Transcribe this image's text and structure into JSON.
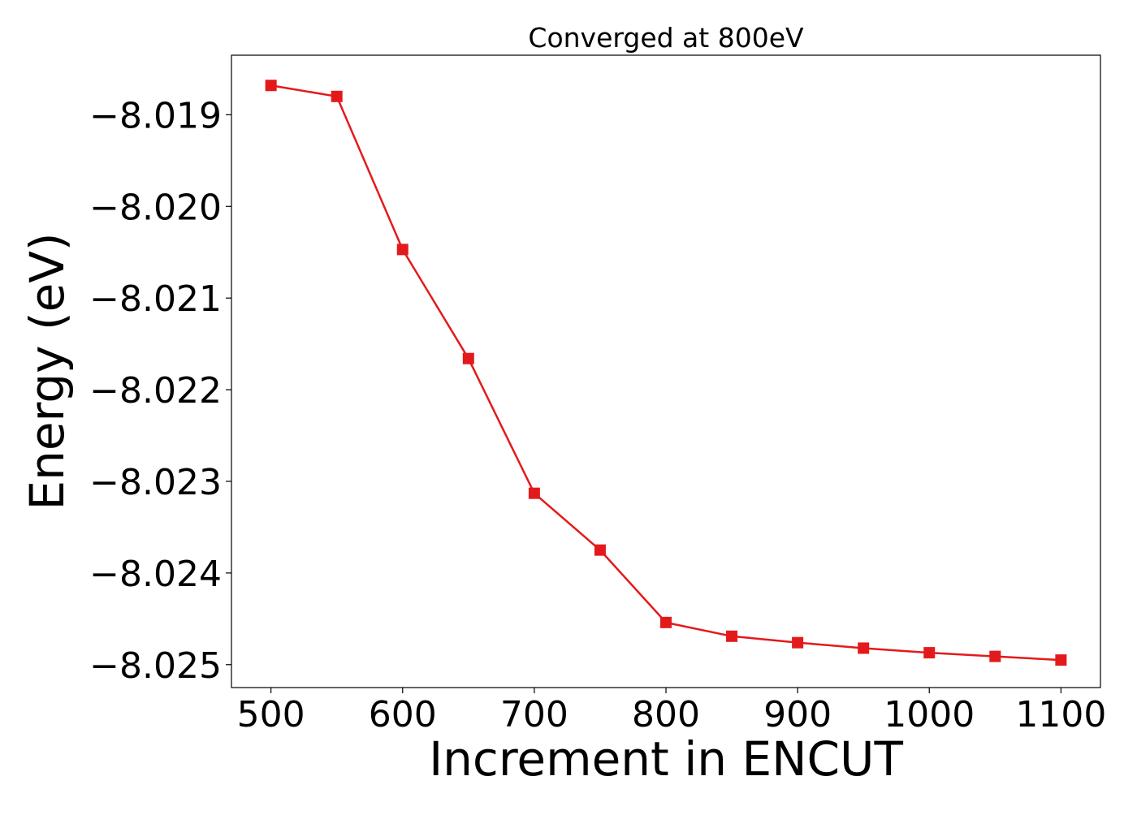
{
  "chart_data": {
    "type": "line",
    "title": "Converged at 800eV",
    "xlabel": "Increment in ENCUT",
    "ylabel": "Energy (eV)",
    "xlim": [
      470,
      1130
    ],
    "ylim": [
      -8.02525,
      -8.01835
    ],
    "xticks": [
      500,
      600,
      700,
      800,
      900,
      1000,
      1100
    ],
    "xtick_labels": [
      "500",
      "600",
      "700",
      "800",
      "900",
      "1000",
      "1100"
    ],
    "yticks": [
      -8.019,
      -8.02,
      -8.021,
      -8.022,
      -8.023,
      -8.024,
      -8.025
    ],
    "ytick_labels": [
      "−8.019",
      "−8.020",
      "−8.021",
      "−8.022",
      "−8.023",
      "−8.024",
      "−8.025"
    ],
    "grid": false,
    "series": [
      {
        "color": "#e31a1c",
        "marker": "square",
        "x": [
          500,
          550,
          600,
          650,
          700,
          750,
          800,
          850,
          900,
          950,
          1000,
          1050,
          1100
        ],
        "y": [
          -8.01868,
          -8.0188,
          -8.02047,
          -8.02166,
          -8.02313,
          -8.02375,
          -8.02454,
          -8.02469,
          -8.02476,
          -8.02482,
          -8.02487,
          -8.02491,
          -8.02495
        ]
      }
    ]
  }
}
